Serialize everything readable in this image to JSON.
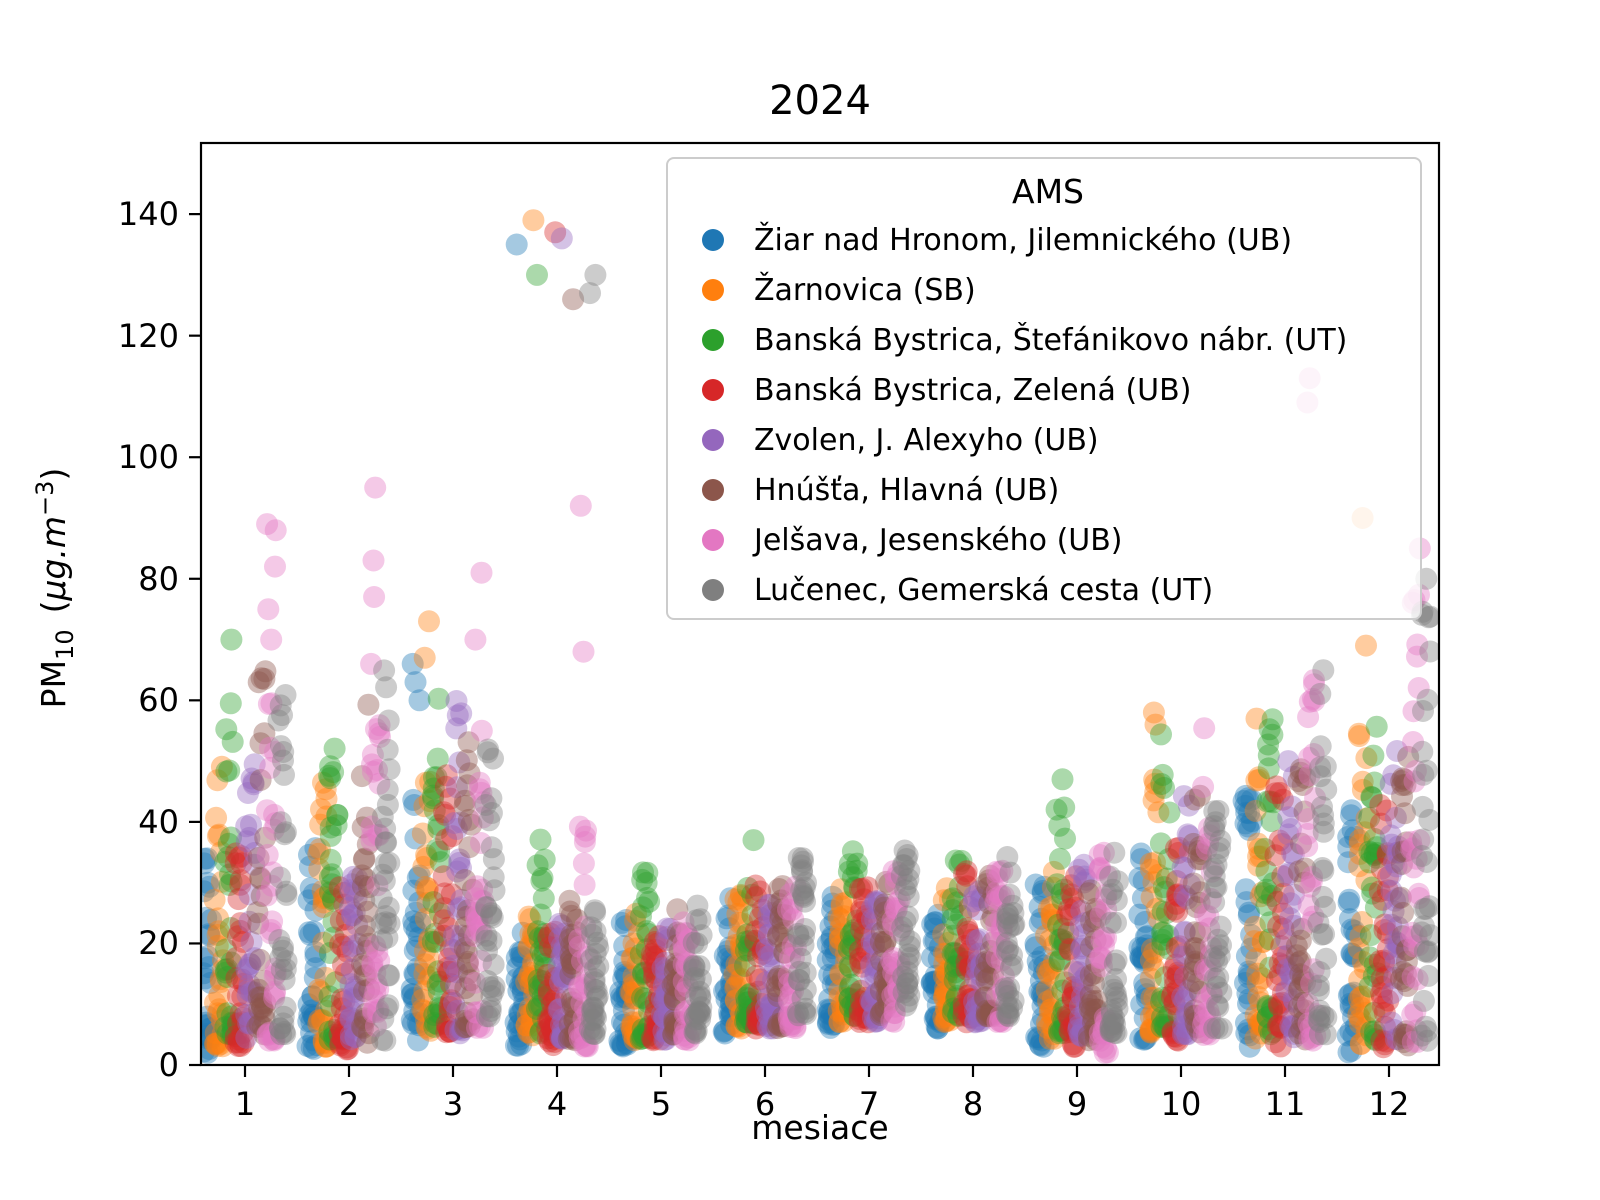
{
  "chart_data": {
    "type": "scatter",
    "subtype": "strip-plot-daily-values",
    "title": "2024",
    "xlabel": "mesiace",
    "ylabel_parts": {
      "base": "PM",
      "sub": "10",
      "open": "(",
      "unit": "µg.m",
      "exp": "−3",
      "close": ")"
    },
    "x_ticks": [
      1,
      2,
      3,
      4,
      5,
      6,
      7,
      8,
      9,
      10,
      11,
      12
    ],
    "y_ticks": [
      0,
      20,
      40,
      60,
      80,
      100,
      120,
      140
    ],
    "xlim": [
      0.52,
      12.48
    ],
    "ylim": [
      0,
      151.7
    ],
    "grid": false,
    "marker_opacity": 0.4,
    "points_per_group": 30,
    "seed": 42,
    "legend": {
      "title": "AMS",
      "position": "upper right",
      "entries": [
        {
          "label": "Žiar nad Hronom, Jilemnického (UB)",
          "color": "#1f77b4"
        },
        {
          "label": "Žarnovica (SB)",
          "color": "#ff7f0e"
        },
        {
          "label": "Banská Bystrica, Štefánikovo nábr. (UT)",
          "color": "#2ca02c"
        },
        {
          "label": "Banská Bystrica, Zelená (UB)",
          "color": "#d62728"
        },
        {
          "label": "Zvolen, J. Alexyho (UB)",
          "color": "#9467bd"
        },
        {
          "label": "Hnúšťa, Hlavná (UB)",
          "color": "#8c564b"
        },
        {
          "label": "Jelšava, Jesenského (UB)",
          "color": "#e377c2"
        },
        {
          "label": "Lučenec, Gemerská cesta (UT)",
          "color": "#7f7f7f"
        }
      ]
    },
    "series": [
      {
        "name": "Žiar nad Hronom, Jilemnického (UB)",
        "id": "ziar-nad-hronom",
        "color": "#1f77b4",
        "monthly": [
          {
            "m": 1,
            "min": 2,
            "max": 37,
            "out": []
          },
          {
            "m": 2,
            "min": 2,
            "max": 36,
            "out": []
          },
          {
            "m": 3,
            "min": 4,
            "max": 50,
            "out": [
              60,
              63,
              66
            ]
          },
          {
            "m": 4,
            "min": 3,
            "max": 22,
            "out": [
              135
            ]
          },
          {
            "m": 5,
            "min": 3,
            "max": 25,
            "out": []
          },
          {
            "m": 6,
            "min": 5,
            "max": 28,
            "out": []
          },
          {
            "m": 7,
            "min": 6,
            "max": 28,
            "out": []
          },
          {
            "m": 8,
            "min": 6,
            "max": 28,
            "out": []
          },
          {
            "m": 9,
            "min": 3,
            "max": 30,
            "out": []
          },
          {
            "m": 10,
            "min": 4,
            "max": 35,
            "out": []
          },
          {
            "m": 11,
            "min": 3,
            "max": 45,
            "out": []
          },
          {
            "m": 12,
            "min": 2,
            "max": 45,
            "out": []
          }
        ]
      },
      {
        "name": "Žarnovica (SB)",
        "id": "zarnovica",
        "color": "#ff7f0e",
        "monthly": [
          {
            "m": 1,
            "min": 3,
            "max": 60,
            "out": []
          },
          {
            "m": 2,
            "min": 3,
            "max": 47,
            "out": []
          },
          {
            "m": 3,
            "min": 5,
            "max": 52,
            "out": [
              67,
              73
            ]
          },
          {
            "m": 4,
            "min": 4,
            "max": 25,
            "out": [
              139
            ]
          },
          {
            "m": 5,
            "min": 4,
            "max": 25,
            "out": []
          },
          {
            "m": 6,
            "min": 6,
            "max": 28,
            "out": []
          },
          {
            "m": 7,
            "min": 7,
            "max": 30,
            "out": []
          },
          {
            "m": 8,
            "min": 7,
            "max": 30,
            "out": []
          },
          {
            "m": 9,
            "min": 4,
            "max": 32,
            "out": []
          },
          {
            "m": 10,
            "min": 5,
            "max": 47,
            "out": [
              56,
              58
            ]
          },
          {
            "m": 11,
            "min": 4,
            "max": 50,
            "out": [
              57
            ]
          },
          {
            "m": 12,
            "min": 3,
            "max": 55,
            "out": [
              69,
              90
            ]
          }
        ]
      },
      {
        "name": "Banská Bystrica, Štefánikovo nábr. (UT)",
        "id": "bb-stefanikovo",
        "color": "#2ca02c",
        "monthly": [
          {
            "m": 1,
            "min": 5,
            "max": 60,
            "out": [
              70
            ]
          },
          {
            "m": 2,
            "min": 4,
            "max": 53,
            "out": []
          },
          {
            "m": 3,
            "min": 6,
            "max": 61,
            "out": []
          },
          {
            "m": 4,
            "min": 5,
            "max": 40,
            "out": [
              130
            ]
          },
          {
            "m": 5,
            "min": 4,
            "max": 32,
            "out": []
          },
          {
            "m": 6,
            "min": 6,
            "max": 30,
            "out": [
              37
            ]
          },
          {
            "m": 7,
            "min": 8,
            "max": 36,
            "out": []
          },
          {
            "m": 8,
            "min": 8,
            "max": 34,
            "out": []
          },
          {
            "m": 9,
            "min": 5,
            "max": 44,
            "out": [
              47
            ]
          },
          {
            "m": 10,
            "min": 6,
            "max": 56,
            "out": []
          },
          {
            "m": 11,
            "min": 5,
            "max": 60,
            "out": []
          },
          {
            "m": 12,
            "min": 4,
            "max": 58,
            "out": []
          }
        ]
      },
      {
        "name": "Banská Bystrica, Zelená (UB)",
        "id": "bb-zelena",
        "color": "#d62728",
        "monthly": [
          {
            "m": 1,
            "min": 3,
            "max": 35,
            "out": []
          },
          {
            "m": 2,
            "min": 2,
            "max": 35,
            "out": []
          },
          {
            "m": 3,
            "min": 5,
            "max": 56,
            "out": []
          },
          {
            "m": 4,
            "min": 3,
            "max": 22,
            "out": [
              137
            ]
          },
          {
            "m": 5,
            "min": 4,
            "max": 24,
            "out": []
          },
          {
            "m": 6,
            "min": 6,
            "max": 30,
            "out": []
          },
          {
            "m": 7,
            "min": 7,
            "max": 30,
            "out": []
          },
          {
            "m": 8,
            "min": 7,
            "max": 32,
            "out": []
          },
          {
            "m": 9,
            "min": 3,
            "max": 32,
            "out": []
          },
          {
            "m": 10,
            "min": 4,
            "max": 38,
            "out": []
          },
          {
            "m": 11,
            "min": 3,
            "max": 48,
            "out": []
          },
          {
            "m": 12,
            "min": 2,
            "max": 48,
            "out": []
          }
        ]
      },
      {
        "name": "Zvolen, J. Alexyho (UB)",
        "id": "zvolen",
        "color": "#9467bd",
        "monthly": [
          {
            "m": 1,
            "min": 4,
            "max": 52,
            "out": []
          },
          {
            "m": 2,
            "min": 4,
            "max": 35,
            "out": []
          },
          {
            "m": 3,
            "min": 5,
            "max": 63,
            "out": []
          },
          {
            "m": 4,
            "min": 4,
            "max": 24,
            "out": [
              136
            ]
          },
          {
            "m": 5,
            "min": 4,
            "max": 24,
            "out": []
          },
          {
            "m": 6,
            "min": 6,
            "max": 28,
            "out": []
          },
          {
            "m": 7,
            "min": 7,
            "max": 30,
            "out": []
          },
          {
            "m": 8,
            "min": 7,
            "max": 30,
            "out": []
          },
          {
            "m": 9,
            "min": 4,
            "max": 35,
            "out": []
          },
          {
            "m": 10,
            "min": 5,
            "max": 46,
            "out": []
          },
          {
            "m": 11,
            "min": 4,
            "max": 52,
            "out": []
          },
          {
            "m": 12,
            "min": 3,
            "max": 55,
            "out": []
          }
        ]
      },
      {
        "name": "Hnúšťa, Hlavná (UB)",
        "id": "hnusta",
        "color": "#8c564b",
        "monthly": [
          {
            "m": 1,
            "min": 5,
            "max": 65,
            "out": []
          },
          {
            "m": 2,
            "min": 3,
            "max": 61,
            "out": []
          },
          {
            "m": 3,
            "min": 6,
            "max": 55,
            "out": []
          },
          {
            "m": 4,
            "min": 4,
            "max": 28,
            "out": [
              126
            ]
          },
          {
            "m": 5,
            "min": 5,
            "max": 26,
            "out": []
          },
          {
            "m": 6,
            "min": 6,
            "max": 30,
            "out": []
          },
          {
            "m": 7,
            "min": 8,
            "max": 32,
            "out": []
          },
          {
            "m": 8,
            "min": 8,
            "max": 32,
            "out": []
          },
          {
            "m": 9,
            "min": 4,
            "max": 35,
            "out": []
          },
          {
            "m": 10,
            "min": 5,
            "max": 45,
            "out": []
          },
          {
            "m": 11,
            "min": 4,
            "max": 50,
            "out": []
          },
          {
            "m": 12,
            "min": 3,
            "max": 58,
            "out": []
          }
        ]
      },
      {
        "name": "Jelšava, Jesenského (UB)",
        "id": "jelsava",
        "color": "#e377c2",
        "monthly": [
          {
            "m": 1,
            "min": 4,
            "max": 62,
            "out": [
              70,
              75,
              82,
              88,
              89
            ]
          },
          {
            "m": 2,
            "min": 4,
            "max": 60,
            "out": [
              66,
              77,
              83,
              95
            ]
          },
          {
            "m": 3,
            "min": 6,
            "max": 57,
            "out": [
              70,
              81
            ]
          },
          {
            "m": 4,
            "min": 3,
            "max": 40,
            "out": [
              68,
              92
            ]
          },
          {
            "m": 5,
            "min": 4,
            "max": 26,
            "out": []
          },
          {
            "m": 6,
            "min": 6,
            "max": 30,
            "out": []
          },
          {
            "m": 7,
            "min": 7,
            "max": 32,
            "out": []
          },
          {
            "m": 8,
            "min": 7,
            "max": 32,
            "out": []
          },
          {
            "m": 9,
            "min": 2,
            "max": 35,
            "out": []
          },
          {
            "m": 10,
            "min": 4,
            "max": 57,
            "out": []
          },
          {
            "m": 11,
            "min": 4,
            "max": 70,
            "out": [
              109,
              113
            ]
          },
          {
            "m": 12,
            "min": 3,
            "max": 80,
            "out": [
              85
            ]
          }
        ]
      },
      {
        "name": "Lučenec, Gemerská cesta (UT)",
        "id": "lucenec",
        "color": "#7f7f7f",
        "monthly": [
          {
            "m": 1,
            "min": 5,
            "max": 67,
            "out": []
          },
          {
            "m": 2,
            "min": 4,
            "max": 66,
            "out": []
          },
          {
            "m": 3,
            "min": 8,
            "max": 53,
            "out": []
          },
          {
            "m": 4,
            "min": 5,
            "max": 28,
            "out": [
              127,
              130
            ]
          },
          {
            "m": 5,
            "min": 5,
            "max": 28,
            "out": []
          },
          {
            "m": 6,
            "min": 8,
            "max": 35,
            "out": []
          },
          {
            "m": 7,
            "min": 9,
            "max": 36,
            "out": []
          },
          {
            "m": 8,
            "min": 8,
            "max": 35,
            "out": []
          },
          {
            "m": 9,
            "min": 5,
            "max": 37,
            "out": []
          },
          {
            "m": 10,
            "min": 6,
            "max": 42,
            "out": []
          },
          {
            "m": 11,
            "min": 5,
            "max": 66,
            "out": []
          },
          {
            "m": 12,
            "min": 4,
            "max": 78,
            "out": [
              80
            ]
          }
        ]
      }
    ]
  }
}
